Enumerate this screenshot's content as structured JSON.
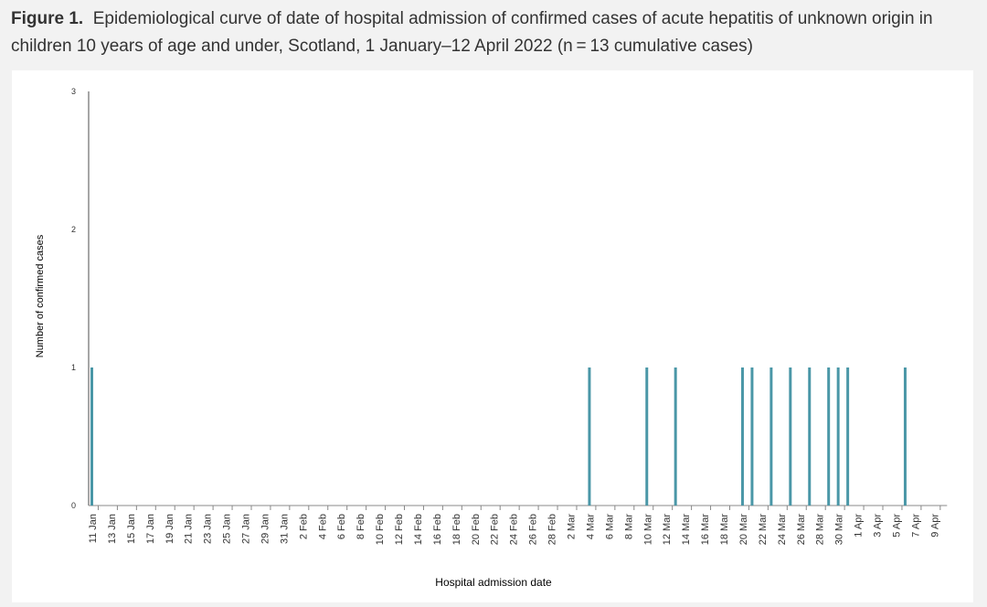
{
  "figure": {
    "label": "Figure 1.",
    "title": "Epidemiological curve of date of hospital admission of confirmed cases of acute hepatitis of unknown origin in children 10 years of age and under, Scotland, 1 January–12 April 2022 (n = 13 cumulative cases)"
  },
  "colors": {
    "bar": "#4a97a7",
    "axis": "#888888",
    "text": "#333333",
    "background": "#f2f2f2",
    "panel": "#ffffff"
  },
  "chart_data": {
    "type": "bar",
    "title": "",
    "xlabel": "Hospital admission date",
    "ylabel": "Number of confirmed cases",
    "ylim": [
      0,
      3
    ],
    "yticks": [
      0,
      1,
      2,
      3
    ],
    "x_start": "2022-01-11",
    "x_end": "2022-04-10",
    "tick_labels": [
      "11 Jan",
      "13 Jan",
      "15 Jan",
      "17 Jan",
      "19 Jan",
      "21 Jan",
      "23 Jan",
      "25 Jan",
      "27 Jan",
      "29 Jan",
      "31 Jan",
      "2 Feb",
      "4 Feb",
      "6 Feb",
      "8 Feb",
      "10 Feb",
      "12 Feb",
      "14 Feb",
      "16 Feb",
      "18 Feb",
      "20 Feb",
      "22 Feb",
      "24 Feb",
      "26 Feb",
      "28 Feb",
      "2 Mar",
      "4 Mar",
      "6 Mar",
      "8 Mar",
      "10 Mar",
      "12 Mar",
      "14 Mar",
      "16 Mar",
      "18 Mar",
      "20 Mar",
      "22 Mar",
      "24 Mar",
      "26 Mar",
      "28 Mar",
      "30 Mar",
      "1 Apr",
      "3 Apr",
      "5 Apr",
      "7 Apr",
      "9 Apr"
    ],
    "series": [
      {
        "name": "Confirmed cases",
        "dates": [
          "11 Jan",
          "4 Mar",
          "10 Mar",
          "13 Mar",
          "20 Mar",
          "21 Mar",
          "23 Mar",
          "25 Mar",
          "27 Mar",
          "29 Mar",
          "30 Mar",
          "31 Mar",
          "6 Apr"
        ],
        "day_index": [
          0,
          52,
          58,
          61,
          68,
          69,
          71,
          73,
          75,
          77,
          78,
          79,
          85
        ],
        "values": [
          1,
          1,
          1,
          1,
          1,
          1,
          1,
          1,
          1,
          1,
          1,
          1,
          1
        ]
      }
    ]
  }
}
